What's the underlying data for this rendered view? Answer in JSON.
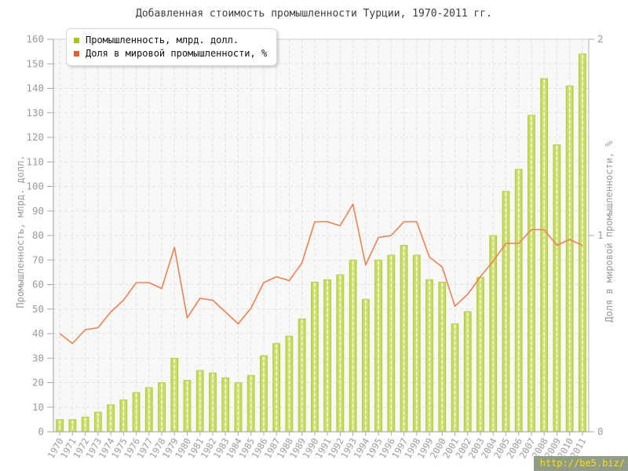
{
  "title": "Добавленная стоимость промышленности Турции, 1970-2011 гг.",
  "watermark": {
    "text": "http://be5.biz/",
    "text_color": "#ffdf00",
    "background": "#909c86"
  },
  "chart_data": {
    "type": "bar+line",
    "title": "Добавленная стоимость промышленности Турции, 1970-2011 гг.",
    "legend_position": "top-left",
    "plot_bg": "#f8f8f7",
    "grid": {
      "style": "dashed",
      "color": "#e3e2e0"
    },
    "categories": [
      "1970",
      "1971",
      "1972",
      "1973",
      "1974",
      "1975",
      "1976",
      "1977",
      "1978",
      "1979",
      "1980",
      "1981",
      "1982",
      "1983",
      "1984",
      "1985",
      "1986",
      "1987",
      "1988",
      "1989",
      "1990",
      "1991",
      "1992",
      "1993",
      "1994",
      "1995",
      "1996",
      "1997",
      "1998",
      "1999",
      "2000",
      "2001",
      "2002",
      "2003",
      "2004",
      "2005",
      "2006",
      "2007",
      "2008",
      "2009",
      "2010",
      "2011"
    ],
    "series": [
      {
        "name": "Промышленность, млрд. долл.",
        "type": "bar",
        "axis": "left",
        "color": "#a6c81e",
        "fill_dark": "#bdd44b",
        "fill_light": "#d6e58a",
        "stroke": "#b2ca3c",
        "values": [
          5,
          5,
          6,
          8,
          11,
          13,
          16,
          18,
          20,
          30,
          21,
          25,
          24,
          22,
          20,
          23,
          31,
          36,
          39,
          46,
          61,
          62,
          64,
          70,
          54,
          70,
          72,
          76,
          72,
          62,
          61,
          44,
          49,
          63,
          80,
          98,
          107,
          129,
          144,
          117,
          141,
          154
        ]
      },
      {
        "name": "Доля в мировой промышленности, %",
        "type": "line",
        "axis": "right",
        "color": "#e0622a",
        "stroke": "#eb8157",
        "values": [
          0.5,
          0.45,
          0.52,
          0.53,
          0.61,
          0.67,
          0.76,
          0.76,
          0.73,
          0.94,
          0.58,
          0.68,
          0.67,
          0.61,
          0.55,
          0.63,
          0.76,
          0.79,
          0.77,
          0.86,
          1.07,
          1.07,
          1.05,
          1.16,
          0.85,
          0.99,
          1.0,
          1.07,
          1.07,
          0.89,
          0.84,
          0.64,
          0.7,
          0.79,
          0.87,
          0.96,
          0.96,
          1.03,
          1.03,
          0.95,
          0.98,
          0.95
        ]
      }
    ],
    "left_axis": {
      "title": "Промышленность, млрд. долл.",
      "min": 0,
      "max": 160,
      "tick_step": 10
    },
    "right_axis": {
      "title": "Доля в мировой промышленности, %",
      "min": 0,
      "max": 2,
      "tick_step": 1
    }
  }
}
